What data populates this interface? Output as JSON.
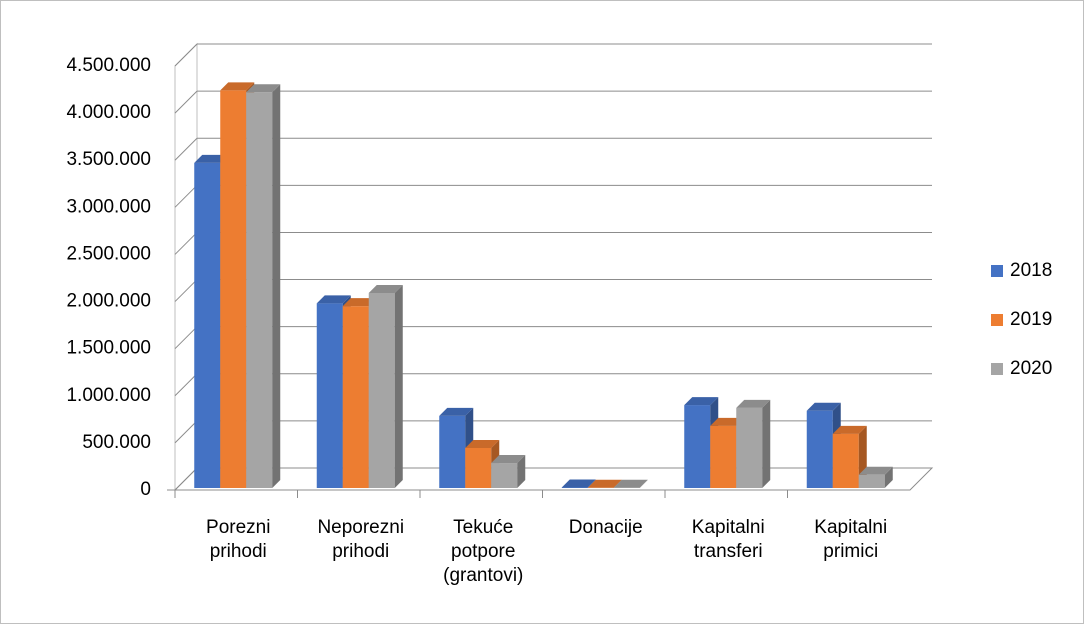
{
  "chart_data": {
    "type": "bar3d",
    "categories": [
      "Porezni prihodi",
      "Neporezni prihodi",
      "Tekuće potpore (grantovi)",
      "Donacije",
      "Kapitalni transferi",
      "Kapitalni primici"
    ],
    "series": [
      {
        "name": "2018",
        "color": "#4472c4",
        "values": [
          3450000,
          1960000,
          765000,
          5000,
          880000,
          820000
        ]
      },
      {
        "name": "2019",
        "color": "#ed7d31",
        "values": [
          4220000,
          1930000,
          425000,
          2000,
          660000,
          575000
        ]
      },
      {
        "name": "2020",
        "color": "#a5a5a5",
        "values": [
          4200000,
          2070000,
          265000,
          3000,
          850000,
          140000
        ]
      }
    ],
    "ylim": [
      0,
      4500000
    ],
    "yticks": [
      0,
      {
        "value": 500000,
        "label": "500.000"
      },
      {
        "value": 1000000,
        "label": "1.000.000"
      },
      {
        "value": 1500000,
        "label": "1.500.000"
      },
      {
        "value": 2000000,
        "label": "2.000.000"
      },
      {
        "value": 2500000,
        "label": "2.500.000"
      },
      {
        "value": 3000000,
        "label": "3.000.000"
      },
      {
        "value": 3500000,
        "label": "3.500.000"
      },
      {
        "value": 4000000,
        "label": "4.000.000"
      },
      {
        "value": 4500000,
        "label": "4.500.000"
      }
    ],
    "grid": true,
    "legend": "right"
  }
}
